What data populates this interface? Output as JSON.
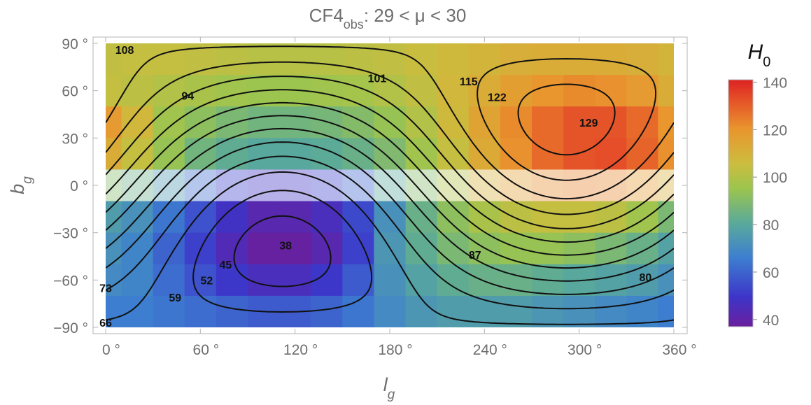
{
  "chart_data": {
    "type": "heatmap",
    "title": {
      "main": "CF4",
      "subscript": "obs",
      "rest": ": 29  <  μ  <  30"
    },
    "xlabel": {
      "main": "l",
      "subscript": "g"
    },
    "ylabel": {
      "main": "b",
      "subscript": "g"
    },
    "xlim": [
      0,
      360
    ],
    "ylim": [
      -90,
      90
    ],
    "xticks": [
      0,
      60,
      120,
      180,
      240,
      300,
      360
    ],
    "yticks": [
      90,
      60,
      30,
      0,
      -30,
      -60,
      -90
    ],
    "xtick_labels": [
      "0 °",
      "60 °",
      "120 °",
      "180 °",
      "240 °",
      "300 °",
      "360 °"
    ],
    "ytick_labels": [
      "90 °",
      "60 °",
      "30 °",
      "0 °",
      "−30 °",
      "−60 °",
      "−90 °"
    ],
    "heatmap": {
      "l_centers": [
        0,
        20,
        40,
        60,
        80,
        100,
        120,
        140,
        160,
        180,
        200,
        220,
        240,
        260,
        280,
        300,
        320,
        340,
        360
      ],
      "b_centers": [
        80,
        60,
        40,
        20,
        0,
        -20,
        -40,
        -60,
        -80
      ],
      "values": [
        [
          103,
          104,
          104,
          103,
          102,
          101,
          101,
          101,
          102,
          103,
          105,
          107,
          109,
          111,
          112,
          112,
          112,
          111,
          109
        ],
        [
          104,
          102,
          100,
          98,
          96,
          95,
          95,
          96,
          97,
          100,
          103,
          108,
          112,
          117,
          120,
          122,
          121,
          118,
          112
        ],
        [
          118,
          108,
          96,
          92,
          88,
          86,
          86,
          87,
          90,
          94,
          100,
          107,
          115,
          122,
          128,
          132,
          132,
          128,
          120
        ],
        [
          112,
          104,
          94,
          86,
          82,
          80,
          80,
          81,
          84,
          89,
          96,
          104,
          113,
          121,
          128,
          132,
          133,
          129,
          121
        ],
        [
          90,
          84,
          74,
          62,
          52,
          48,
          48,
          52,
          60,
          80,
          90,
          100,
          110,
          117,
          122,
          124,
          123,
          118,
          110
        ],
        [
          76,
          72,
          64,
          56,
          48,
          42,
          42,
          46,
          54,
          72,
          84,
          92,
          98,
          102,
          104,
          104,
          102,
          96,
          88
        ],
        [
          72,
          68,
          60,
          52,
          44,
          38,
          38,
          42,
          52,
          74,
          82,
          88,
          92,
          94,
          94,
          92,
          88,
          84,
          78
        ],
        [
          70,
          68,
          62,
          56,
          50,
          46,
          46,
          50,
          58,
          72,
          78,
          82,
          84,
          84,
          82,
          80,
          78,
          76,
          72
        ],
        [
          66,
          66,
          64,
          62,
          60,
          58,
          58,
          60,
          64,
          70,
          74,
          76,
          76,
          76,
          74,
          72,
          70,
          68,
          66
        ]
      ],
      "masked_band": [
        -10,
        10
      ]
    },
    "contour_levels": [
      38,
      45,
      52,
      59,
      66,
      73,
      80,
      87,
      94,
      101,
      108,
      115,
      122,
      129
    ],
    "contour_labels": [
      {
        "text": "108",
        "l": 12,
        "b": 86
      },
      {
        "text": "101",
        "l": 172,
        "b": 68
      },
      {
        "text": "115",
        "l": 230,
        "b": 66
      },
      {
        "text": "122",
        "l": 248,
        "b": 56
      },
      {
        "text": "94",
        "l": 52,
        "b": 57
      },
      {
        "text": "129",
        "l": 306,
        "b": 40
      },
      {
        "text": "38",
        "l": 114,
        "b": -38
      },
      {
        "text": "87",
        "l": 234,
        "b": -44
      },
      {
        "text": "45",
        "l": 76,
        "b": -50
      },
      {
        "text": "52",
        "l": 64,
        "b": -60
      },
      {
        "text": "73",
        "l": 0,
        "b": -65
      },
      {
        "text": "59",
        "l": 44,
        "b": -71
      },
      {
        "text": "80",
        "l": 342,
        "b": -58
      },
      {
        "text": "66",
        "l": 0,
        "b": -87
      }
    ],
    "colorbar": {
      "label": {
        "main": "H",
        "subscript": "0"
      },
      "range": [
        37,
        141
      ],
      "ticks": [
        140,
        120,
        100,
        80,
        60,
        40
      ],
      "tick_labels": [
        "140",
        "120",
        "100",
        "80",
        "60",
        "40"
      ]
    },
    "colors": {
      "text": "#6e6e6e",
      "frame": "#b4b4b4"
    }
  }
}
